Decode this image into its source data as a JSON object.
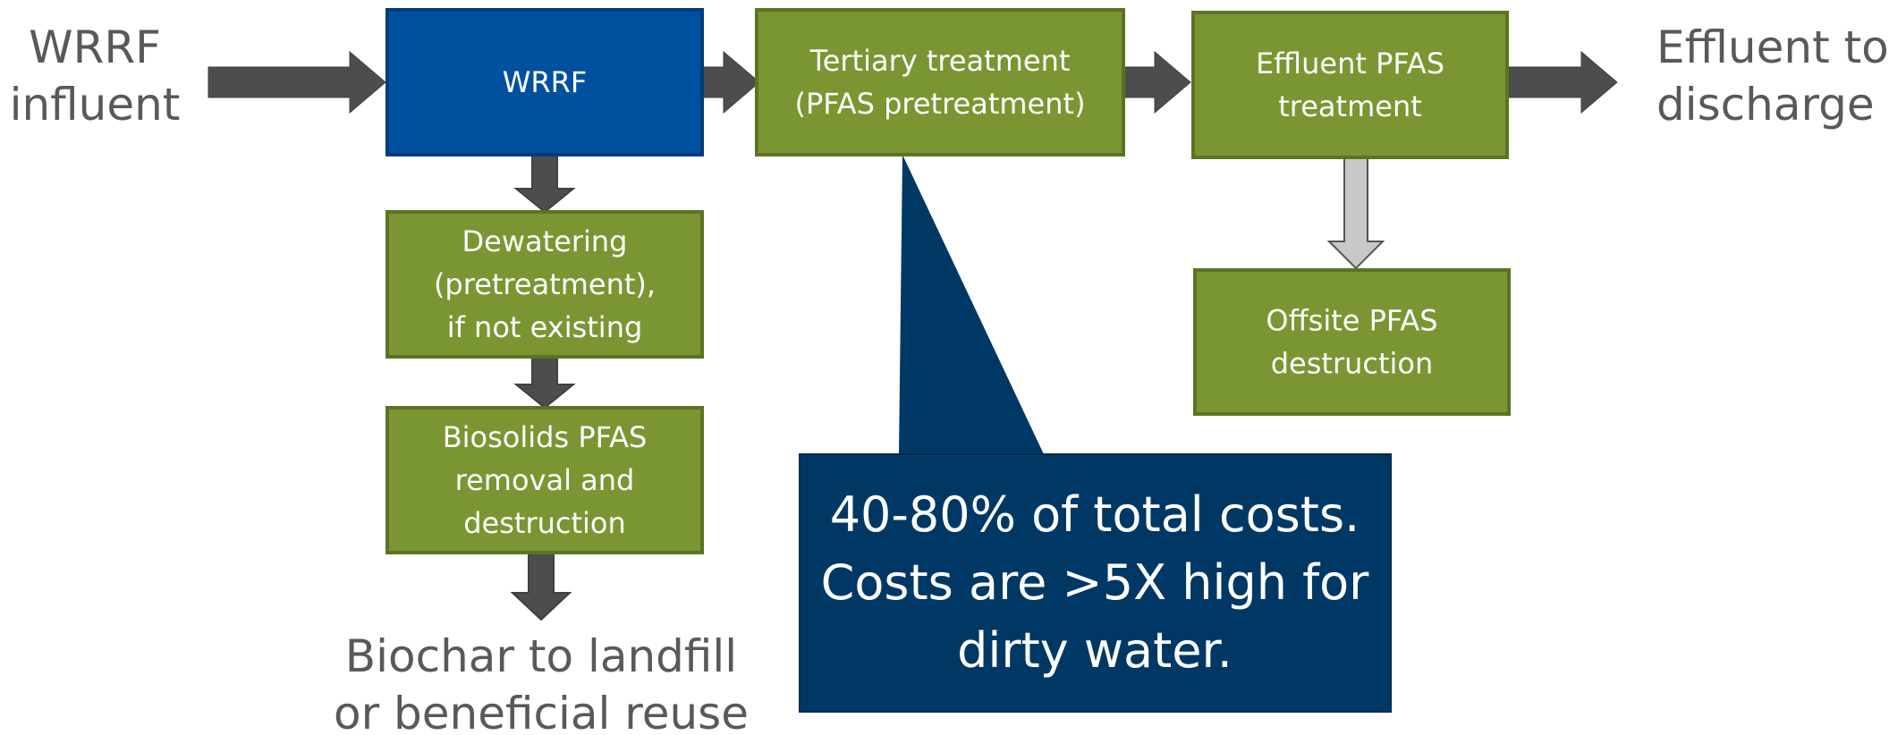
{
  "nodes": [
    {
      "lines": [
        "WRRF"
      ]
    },
    {
      "lines": [
        "Tertiary treatment",
        "(PFAS pretreatment)"
      ]
    },
    {
      "lines": [
        "Effluent PFAS",
        "treatment"
      ]
    },
    {
      "lines": [
        "Dewatering",
        "(pretreatment),",
        "if not existing"
      ]
    },
    {
      "lines": [
        "Biosolids PFAS",
        "removal and",
        "destruction"
      ]
    },
    {
      "lines": [
        "Offsite PFAS",
        "destruction"
      ]
    }
  ],
  "labels": {
    "influent": [
      "WRRF",
      "influent"
    ],
    "discharge": [
      "Effluent to",
      "discharge"
    ],
    "biochar": [
      "Biochar to landfill",
      "or beneficial reuse"
    ]
  },
  "callout": [
    "40-80% of total costs.",
    "Costs are >5X high for",
    "dirty water."
  ]
}
